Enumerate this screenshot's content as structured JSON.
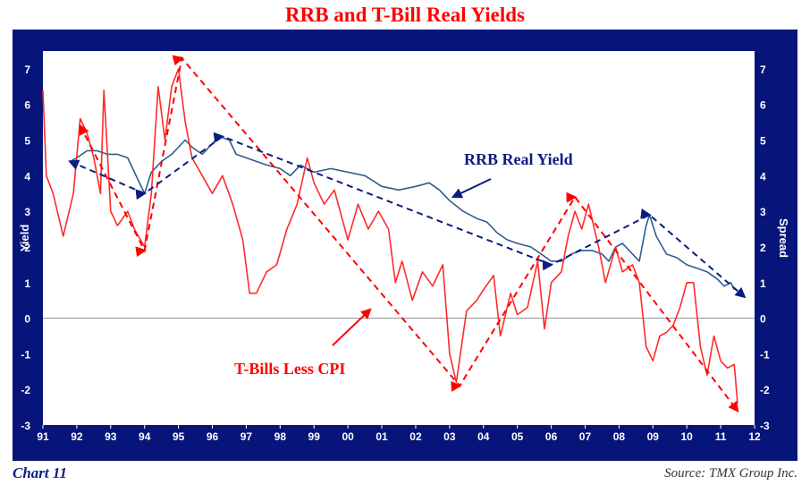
{
  "title": "RRB and T-Bill Real Yields",
  "footer": {
    "chart_number": "Chart 11",
    "source": "Source: TMX Group Inc."
  },
  "colors": {
    "frame": "#07157a",
    "plot_bg": "#ffffff",
    "rrb": "#2e5c8f",
    "tbill": "#ff2a2a",
    "annotation_red": "#ff0000",
    "annotation_blue": "#0b1d80"
  },
  "chart_data": {
    "type": "line",
    "ylabel": "Yield",
    "y2label": "Spread",
    "ylim": [
      -3,
      7.5
    ],
    "yticks": [
      -3,
      -2,
      -1,
      0,
      1,
      2,
      3,
      4,
      5,
      6,
      7
    ],
    "ytick_labels": [
      "-3",
      "-2",
      "-1",
      "0",
      "1",
      "2",
      "3",
      "4",
      "5",
      "6",
      "7"
    ],
    "xlim": [
      1991,
      2012
    ],
    "xticks": [
      1991,
      1992,
      1993,
      1994,
      1995,
      1996,
      1997,
      1998,
      1999,
      2000,
      2001,
      2002,
      2003,
      2004,
      2005,
      2006,
      2007,
      2008,
      2009,
      2010,
      2011,
      2012
    ],
    "xtick_labels": [
      "91",
      "92",
      "93",
      "94",
      "95",
      "96",
      "97",
      "98",
      "99",
      "00",
      "01",
      "02",
      "03",
      "04",
      "05",
      "06",
      "07",
      "08",
      "09",
      "10",
      "11",
      "12"
    ],
    "zero_line": true,
    "series": [
      {
        "name": "RRB Real Yield",
        "color": "#2e5c8f",
        "points": [
          [
            1991.8,
            4.4
          ],
          [
            1992.0,
            4.5
          ],
          [
            1992.3,
            4.7
          ],
          [
            1992.6,
            4.7
          ],
          [
            1992.9,
            4.6
          ],
          [
            1993.2,
            4.6
          ],
          [
            1993.5,
            4.5
          ],
          [
            1993.8,
            3.9
          ],
          [
            1994.0,
            3.5
          ],
          [
            1994.2,
            4.1
          ],
          [
            1994.5,
            4.4
          ],
          [
            1994.8,
            4.6
          ],
          [
            1995.0,
            4.8
          ],
          [
            1995.2,
            5.0
          ],
          [
            1995.4,
            4.8
          ],
          [
            1995.7,
            4.6
          ],
          [
            1996.0,
            4.9
          ],
          [
            1996.2,
            5.1
          ],
          [
            1996.5,
            5.0
          ],
          [
            1996.7,
            4.6
          ],
          [
            1997.0,
            4.5
          ],
          [
            1997.3,
            4.4
          ],
          [
            1997.6,
            4.3
          ],
          [
            1998.0,
            4.2
          ],
          [
            1998.3,
            4.0
          ],
          [
            1998.6,
            4.3
          ],
          [
            1999.0,
            4.1
          ],
          [
            1999.5,
            4.2
          ],
          [
            2000.0,
            4.1
          ],
          [
            2000.5,
            4.0
          ],
          [
            2001.0,
            3.7
          ],
          [
            2001.5,
            3.6
          ],
          [
            2002.0,
            3.7
          ],
          [
            2002.4,
            3.8
          ],
          [
            2002.7,
            3.6
          ],
          [
            2003.0,
            3.3
          ],
          [
            2003.4,
            3.0
          ],
          [
            2003.8,
            2.8
          ],
          [
            2004.1,
            2.7
          ],
          [
            2004.4,
            2.4
          ],
          [
            2004.7,
            2.2
          ],
          [
            2005.0,
            2.1
          ],
          [
            2005.4,
            2.0
          ],
          [
            2005.7,
            1.8
          ],
          [
            2006.0,
            1.6
          ],
          [
            2006.3,
            1.6
          ],
          [
            2006.6,
            1.8
          ],
          [
            2006.9,
            1.9
          ],
          [
            2007.2,
            1.9
          ],
          [
            2007.5,
            1.8
          ],
          [
            2007.7,
            1.6
          ],
          [
            2007.9,
            2.0
          ],
          [
            2008.1,
            2.1
          ],
          [
            2008.4,
            1.8
          ],
          [
            2008.6,
            1.6
          ],
          [
            2008.8,
            2.6
          ],
          [
            2008.9,
            2.9
          ],
          [
            2009.1,
            2.3
          ],
          [
            2009.4,
            1.8
          ],
          [
            2009.7,
            1.7
          ],
          [
            2010.0,
            1.5
          ],
          [
            2010.3,
            1.4
          ],
          [
            2010.6,
            1.3
          ],
          [
            2010.9,
            1.1
          ],
          [
            2011.1,
            0.9
          ],
          [
            2011.3,
            1.0
          ],
          [
            2011.4,
            0.8
          ]
        ]
      },
      {
        "name": "T-Bills Less CPI",
        "color": "#ff2a2a",
        "points": [
          [
            1991.0,
            6.4
          ],
          [
            1991.1,
            4.0
          ],
          [
            1991.3,
            3.5
          ],
          [
            1991.6,
            2.3
          ],
          [
            1991.9,
            3.5
          ],
          [
            1992.1,
            5.6
          ],
          [
            1992.3,
            5.2
          ],
          [
            1992.5,
            4.5
          ],
          [
            1992.7,
            3.5
          ],
          [
            1992.8,
            6.4
          ],
          [
            1993.0,
            3.0
          ],
          [
            1993.2,
            2.6
          ],
          [
            1993.5,
            3.0
          ],
          [
            1993.7,
            2.5
          ],
          [
            1994.0,
            2.0
          ],
          [
            1994.2,
            3.5
          ],
          [
            1994.4,
            6.5
          ],
          [
            1994.6,
            5.0
          ],
          [
            1994.8,
            6.5
          ],
          [
            1995.0,
            7.0
          ],
          [
            1995.2,
            5.5
          ],
          [
            1995.4,
            4.5
          ],
          [
            1995.7,
            4.0
          ],
          [
            1996.0,
            3.5
          ],
          [
            1996.3,
            4.0
          ],
          [
            1996.6,
            3.2
          ],
          [
            1996.9,
            2.2
          ],
          [
            1997.1,
            0.7
          ],
          [
            1997.3,
            0.7
          ],
          [
            1997.6,
            1.3
          ],
          [
            1997.9,
            1.5
          ],
          [
            1998.2,
            2.5
          ],
          [
            1998.5,
            3.2
          ],
          [
            1998.8,
            4.5
          ],
          [
            1999.0,
            3.8
          ],
          [
            1999.3,
            3.2
          ],
          [
            1999.6,
            3.6
          ],
          [
            2000.0,
            2.2
          ],
          [
            2000.3,
            3.2
          ],
          [
            2000.6,
            2.5
          ],
          [
            2000.9,
            3.0
          ],
          [
            2001.2,
            2.5
          ],
          [
            2001.4,
            1.0
          ],
          [
            2001.6,
            1.6
          ],
          [
            2001.9,
            0.5
          ],
          [
            2002.2,
            1.3
          ],
          [
            2002.5,
            0.9
          ],
          [
            2002.8,
            1.5
          ],
          [
            2003.0,
            -1.0
          ],
          [
            2003.2,
            -1.8
          ],
          [
            2003.5,
            0.2
          ],
          [
            2003.8,
            0.5
          ],
          [
            2004.0,
            0.8
          ],
          [
            2004.3,
            1.2
          ],
          [
            2004.5,
            -0.5
          ],
          [
            2004.8,
            0.7
          ],
          [
            2005.0,
            0.1
          ],
          [
            2005.3,
            0.3
          ],
          [
            2005.6,
            1.6
          ],
          [
            2005.8,
            -0.3
          ],
          [
            2006.0,
            1.0
          ],
          [
            2006.3,
            1.3
          ],
          [
            2006.5,
            2.3
          ],
          [
            2006.7,
            3.0
          ],
          [
            2006.9,
            2.5
          ],
          [
            2007.1,
            3.2
          ],
          [
            2007.4,
            2.0
          ],
          [
            2007.6,
            1.0
          ],
          [
            2007.9,
            2.0
          ],
          [
            2008.1,
            1.3
          ],
          [
            2008.4,
            1.5
          ],
          [
            2008.6,
            1.0
          ],
          [
            2008.8,
            -0.8
          ],
          [
            2009.0,
            -1.2
          ],
          [
            2009.2,
            -0.5
          ],
          [
            2009.4,
            -0.4
          ],
          [
            2009.6,
            -0.2
          ],
          [
            2009.8,
            0.3
          ],
          [
            2010.0,
            1.0
          ],
          [
            2010.2,
            1.0
          ],
          [
            2010.4,
            -0.8
          ],
          [
            2010.6,
            -1.6
          ],
          [
            2010.8,
            -0.5
          ],
          [
            2011.0,
            -1.2
          ],
          [
            2011.2,
            -1.4
          ],
          [
            2011.4,
            -1.3
          ],
          [
            2011.5,
            -2.4
          ]
        ]
      }
    ],
    "annotations": [
      {
        "label": "RRB Real Yield",
        "color": "#0b1d80"
      },
      {
        "label": "T-Bills Less CPI",
        "color": "#ff0000"
      }
    ],
    "trend_lines": [
      {
        "color": "#ff0000",
        "points": [
          [
            1992.1,
            5.4
          ],
          [
            1994.0,
            1.9
          ],
          [
            1995.1,
            7.3
          ],
          [
            2003.3,
            -1.9
          ],
          [
            2006.7,
            3.4
          ],
          [
            2011.5,
            -2.6
          ]
        ]
      },
      {
        "color": "#0b1d80",
        "points": [
          [
            1991.8,
            4.4
          ],
          [
            1994.0,
            3.5
          ],
          [
            1996.3,
            5.1
          ],
          [
            2006.0,
            1.5
          ],
          [
            2008.9,
            2.9
          ],
          [
            2011.7,
            0.6
          ]
        ]
      }
    ]
  }
}
